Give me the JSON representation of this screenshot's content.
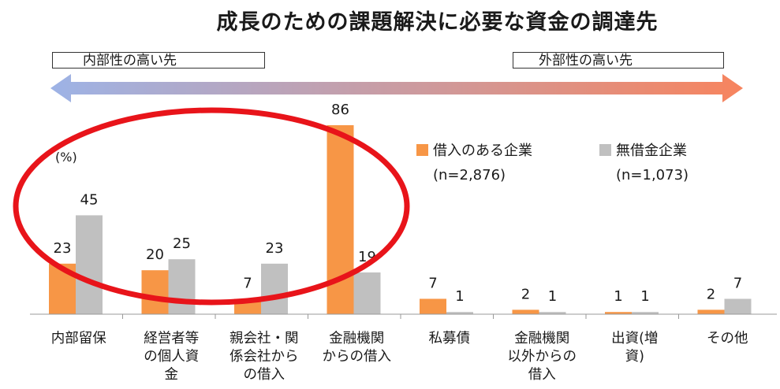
{
  "title": "成長のための課題解決に必要な資金の調達先",
  "left_box_label": "内部性の高い先",
  "right_box_label": "外部性の高い先",
  "unit_label": "(%)",
  "colors": {
    "borrowing": "#F79646",
    "debt_free": "#C0C0C0",
    "circle": "#E8141A",
    "arrow_left": "#9DB3E6",
    "arrow_right": "#F7845E"
  },
  "chart_data": {
    "type": "bar",
    "categories": [
      [
        "内部留保"
      ],
      [
        "経営者等",
        "の個人資",
        "金"
      ],
      [
        "親会社・関",
        "係会社から",
        "の借入"
      ],
      [
        "金融機関",
        "からの借入"
      ],
      [
        "私募債"
      ],
      [
        "金融機関",
        "以外からの",
        "借入"
      ],
      [
        "出資(増",
        "資)"
      ],
      [
        "その他"
      ]
    ],
    "series": [
      {
        "name": "借入のある企業",
        "n_label": "(n=2,876)",
        "values": [
          23,
          20,
          7,
          86,
          7,
          2,
          1,
          2
        ]
      },
      {
        "name": "無借金企業",
        "n_label": "(n=1,073)",
        "values": [
          45,
          25,
          23,
          19,
          1,
          1,
          1,
          7
        ]
      }
    ],
    "ylim": [
      0,
      100
    ],
    "legend": "top-right",
    "grid": false
  }
}
